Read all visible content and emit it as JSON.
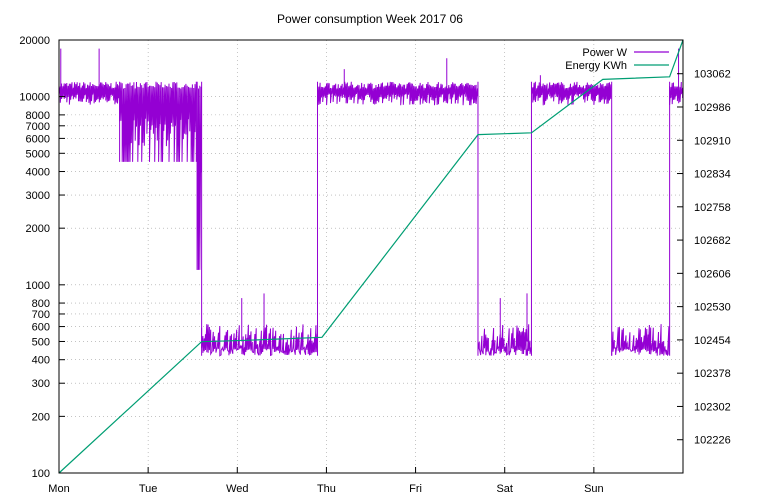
{
  "chart_data": {
    "type": "line",
    "title": "Power consumption Week 2017 06",
    "xlabel": "",
    "ylabel": "",
    "grid": true,
    "legend_position": "top-right",
    "x_ticks": [
      "Mon",
      "Tue",
      "Wed",
      "Thu",
      "Fri",
      "Sat",
      "Sun"
    ],
    "x_range_days": [
      0,
      7
    ],
    "y_left": {
      "scale": "log",
      "range": [
        100,
        20000
      ],
      "ticks": [
        100,
        200,
        300,
        400,
        500,
        600,
        700,
        800,
        1000,
        2000,
        3000,
        4000,
        5000,
        6000,
        7000,
        8000,
        10000,
        20000
      ],
      "tick_labels": [
        "100",
        "200",
        "300",
        "400",
        "500",
        "600",
        "700",
        "800",
        "1000",
        "2000",
        "3000",
        "4000",
        "5000",
        "6000",
        "7000",
        "8000",
        "10000",
        "20000"
      ]
    },
    "y_right": {
      "scale": "linear",
      "range": [
        102150,
        103139
      ],
      "ticks": [
        102226,
        102302,
        102378,
        102454,
        102530,
        102606,
        102682,
        102758,
        102834,
        102910,
        102986,
        103062
      ],
      "tick_labels": [
        "102226",
        "102302",
        "102378",
        "102454",
        "102530",
        "102606",
        "102682",
        "102758",
        "102834",
        "102910",
        "102986",
        "103062"
      ]
    },
    "series": [
      {
        "name": "Power W",
        "axis": "left",
        "color": "#9400d3",
        "segments": [
          {
            "x0": 0.0,
            "x1": 0.68,
            "low": 9000,
            "high": 12000
          },
          {
            "x0": 0.68,
            "x1": 1.55,
            "low": 4500,
            "high": 12000
          },
          {
            "x0": 1.55,
            "x1": 1.6,
            "low": 1200,
            "high": 12000
          },
          {
            "x0": 1.6,
            "x1": 2.9,
            "low": 420,
            "high": 620
          },
          {
            "x0": 2.9,
            "x1": 4.7,
            "low": 9000,
            "high": 12000
          },
          {
            "x0": 4.7,
            "x1": 5.3,
            "low": 420,
            "high": 620
          },
          {
            "x0": 5.3,
            "x1": 6.2,
            "low": 9000,
            "high": 12000
          },
          {
            "x0": 6.2,
            "x1": 6.85,
            "low": 420,
            "high": 620
          },
          {
            "x0": 6.85,
            "x1": 7.0,
            "low": 9000,
            "high": 12000
          }
        ],
        "spikes": [
          {
            "x": 0.02,
            "value": 18000
          },
          {
            "x": 0.45,
            "value": 18000
          },
          {
            "x": 2.05,
            "value": 850
          },
          {
            "x": 2.3,
            "value": 900
          },
          {
            "x": 3.2,
            "value": 14000
          },
          {
            "x": 4.35,
            "value": 16000
          },
          {
            "x": 4.95,
            "value": 850
          },
          {
            "x": 5.25,
            "value": 900
          },
          {
            "x": 5.4,
            "value": 13000
          },
          {
            "x": 6.95,
            "value": 18000
          }
        ]
      },
      {
        "name": "Energy KWh",
        "axis": "right",
        "color": "#009e73",
        "x": [
          0.0,
          1.6,
          2.1,
          2.95,
          4.7,
          5.3,
          6.1,
          6.85,
          7.0
        ],
        "values": [
          102150,
          102450,
          102453,
          102460,
          102923,
          102927,
          103049,
          103055,
          103139
        ]
      }
    ]
  }
}
